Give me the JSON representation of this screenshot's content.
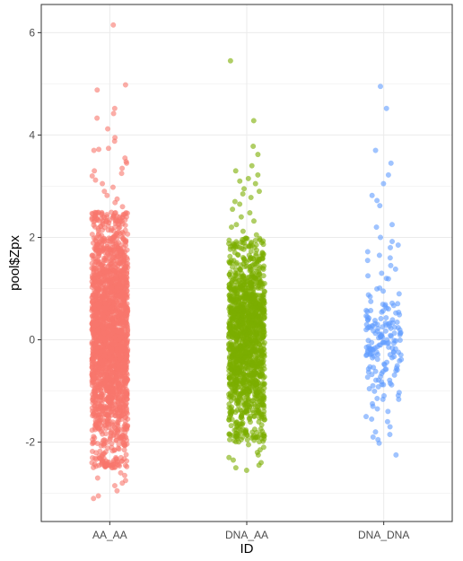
{
  "chart_data": {
    "type": "scatter",
    "subtype": "jitter-strip",
    "xlabel": "ID",
    "ylabel": "pool$Zpx",
    "categories": [
      "AA_AA",
      "DNA_AA",
      "DNA_DNA"
    ],
    "ylim": [
      -3.55,
      6.55
    ],
    "yticks": [
      -2,
      0,
      2,
      4,
      6
    ],
    "ytick_labels": [
      "-2",
      "0",
      "2",
      "4",
      "6"
    ],
    "grid": true,
    "legend": "none",
    "point_opacity": 0.6,
    "series": [
      {
        "category": "AA_AA",
        "color": "#F8766D",
        "core_range": [
          -2.5,
          2.5
        ],
        "points": [
          {
            "x": "AA_AA",
            "y": 6.15
          },
          {
            "x": "AA_AA",
            "y": 4.98
          },
          {
            "x": "AA_AA",
            "y": 4.88
          },
          {
            "x": "AA_AA",
            "y": 4.52
          },
          {
            "x": "AA_AA",
            "y": 4.42
          },
          {
            "x": "AA_AA",
            "y": 4.33
          },
          {
            "x": "AA_AA",
            "y": 4.12
          },
          {
            "x": "AA_AA",
            "y": 3.95
          },
          {
            "x": "AA_AA",
            "y": 3.88
          },
          {
            "x": "AA_AA",
            "y": 3.74
          },
          {
            "x": "AA_AA",
            "y": 3.72
          },
          {
            "x": "AA_AA",
            "y": 3.7
          },
          {
            "x": "AA_AA",
            "y": 3.55
          },
          {
            "x": "AA_AA",
            "y": 3.48
          },
          {
            "x": "AA_AA",
            "y": 3.45
          },
          {
            "x": "AA_AA",
            "y": 3.35
          },
          {
            "x": "AA_AA",
            "y": 3.3
          },
          {
            "x": "AA_AA",
            "y": 3.25
          },
          {
            "x": "AA_AA",
            "y": 3.2
          },
          {
            "x": "AA_AA",
            "y": 3.12
          },
          {
            "x": "AA_AA",
            "y": 3.05
          },
          {
            "x": "AA_AA",
            "y": 2.98
          },
          {
            "x": "AA_AA",
            "y": 2.9
          },
          {
            "x": "AA_AA",
            "y": 2.82
          },
          {
            "x": "AA_AA",
            "y": 2.75
          },
          {
            "x": "AA_AA",
            "y": 2.68
          },
          {
            "x": "AA_AA",
            "y": 2.6
          },
          {
            "x": "AA_AA",
            "y": -2.6
          },
          {
            "x": "AA_AA",
            "y": -2.65
          },
          {
            "x": "AA_AA",
            "y": -2.7
          },
          {
            "x": "AA_AA",
            "y": -2.75
          },
          {
            "x": "AA_AA",
            "y": -2.8
          },
          {
            "x": "AA_AA",
            "y": -2.85
          },
          {
            "x": "AA_AA",
            "y": -2.95
          },
          {
            "x": "AA_AA",
            "y": -3.05
          },
          {
            "x": "AA_AA",
            "y": -3.1
          }
        ]
      },
      {
        "category": "DNA_AA",
        "color": "#7CAE00",
        "core_range": [
          -2.0,
          2.0
        ],
        "points": [
          {
            "x": "DNA_AA",
            "y": 5.45
          },
          {
            "x": "DNA_AA",
            "y": 4.28
          },
          {
            "x": "DNA_AA",
            "y": 3.78
          },
          {
            "x": "DNA_AA",
            "y": 3.62
          },
          {
            "x": "DNA_AA",
            "y": 3.4
          },
          {
            "x": "DNA_AA",
            "y": 3.3
          },
          {
            "x": "DNA_AA",
            "y": 3.22
          },
          {
            "x": "DNA_AA",
            "y": 3.15
          },
          {
            "x": "DNA_AA",
            "y": 3.1
          },
          {
            "x": "DNA_AA",
            "y": 3.05
          },
          {
            "x": "DNA_AA",
            "y": 2.95
          },
          {
            "x": "DNA_AA",
            "y": 2.9
          },
          {
            "x": "DNA_AA",
            "y": 2.85
          },
          {
            "x": "DNA_AA",
            "y": 2.78
          },
          {
            "x": "DNA_AA",
            "y": 2.7
          },
          {
            "x": "DNA_AA",
            "y": 2.65
          },
          {
            "x": "DNA_AA",
            "y": 2.55
          },
          {
            "x": "DNA_AA",
            "y": 2.48
          },
          {
            "x": "DNA_AA",
            "y": 2.4
          },
          {
            "x": "DNA_AA",
            "y": 2.32
          },
          {
            "x": "DNA_AA",
            "y": 2.25
          },
          {
            "x": "DNA_AA",
            "y": 2.2
          },
          {
            "x": "DNA_AA",
            "y": 2.12
          },
          {
            "x": "DNA_AA",
            "y": 2.05
          },
          {
            "x": "DNA_AA",
            "y": -2.05
          },
          {
            "x": "DNA_AA",
            "y": -2.1
          },
          {
            "x": "DNA_AA",
            "y": -2.15
          },
          {
            "x": "DNA_AA",
            "y": -2.2
          },
          {
            "x": "DNA_AA",
            "y": -2.25
          },
          {
            "x": "DNA_AA",
            "y": -2.3
          },
          {
            "x": "DNA_AA",
            "y": -2.35
          },
          {
            "x": "DNA_AA",
            "y": -2.4
          },
          {
            "x": "DNA_AA",
            "y": -2.45
          },
          {
            "x": "DNA_AA",
            "y": -2.5
          },
          {
            "x": "DNA_AA",
            "y": -2.55
          }
        ]
      },
      {
        "category": "DNA_DNA",
        "color": "#619CFF",
        "core_range": [
          -1.2,
          1.2
        ],
        "points": [
          {
            "x": "DNA_DNA",
            "y": 4.95
          },
          {
            "x": "DNA_DNA",
            "y": 4.52
          },
          {
            "x": "DNA_DNA",
            "y": 3.7
          },
          {
            "x": "DNA_DNA",
            "y": 3.45
          },
          {
            "x": "DNA_DNA",
            "y": 3.22
          },
          {
            "x": "DNA_DNA",
            "y": 3.05
          },
          {
            "x": "DNA_DNA",
            "y": 2.82
          },
          {
            "x": "DNA_DNA",
            "y": 2.72
          },
          {
            "x": "DNA_DNA",
            "y": 2.62
          },
          {
            "x": "DNA_DNA",
            "y": 2.25
          },
          {
            "x": "DNA_DNA",
            "y": 2.2
          },
          {
            "x": "DNA_DNA",
            "y": 2.0
          },
          {
            "x": "DNA_DNA",
            "y": 1.92
          },
          {
            "x": "DNA_DNA",
            "y": 1.85
          },
          {
            "x": "DNA_DNA",
            "y": 1.8
          },
          {
            "x": "DNA_DNA",
            "y": 1.72
          },
          {
            "x": "DNA_DNA",
            "y": 1.65
          },
          {
            "x": "DNA_DNA",
            "y": 1.6
          },
          {
            "x": "DNA_DNA",
            "y": 1.55
          },
          {
            "x": "DNA_DNA",
            "y": 1.45
          },
          {
            "x": "DNA_DNA",
            "y": 1.38
          },
          {
            "x": "DNA_DNA",
            "y": 1.3
          },
          {
            "x": "DNA_DNA",
            "y": 1.25
          },
          {
            "x": "DNA_DNA",
            "y": -1.25
          },
          {
            "x": "DNA_DNA",
            "y": -1.3
          },
          {
            "x": "DNA_DNA",
            "y": -1.35
          },
          {
            "x": "DNA_DNA",
            "y": -1.4
          },
          {
            "x": "DNA_DNA",
            "y": -1.5
          },
          {
            "x": "DNA_DNA",
            "y": -1.55
          },
          {
            "x": "DNA_DNA",
            "y": -1.6
          },
          {
            "x": "DNA_DNA",
            "y": -1.7
          },
          {
            "x": "DNA_DNA",
            "y": -1.8
          },
          {
            "x": "DNA_DNA",
            "y": -1.85
          },
          {
            "x": "DNA_DNA",
            "y": -1.9
          },
          {
            "x": "DNA_DNA",
            "y": -1.95
          },
          {
            "x": "DNA_DNA",
            "y": -2.02
          },
          {
            "x": "DNA_DNA",
            "y": -2.25
          }
        ]
      }
    ]
  }
}
